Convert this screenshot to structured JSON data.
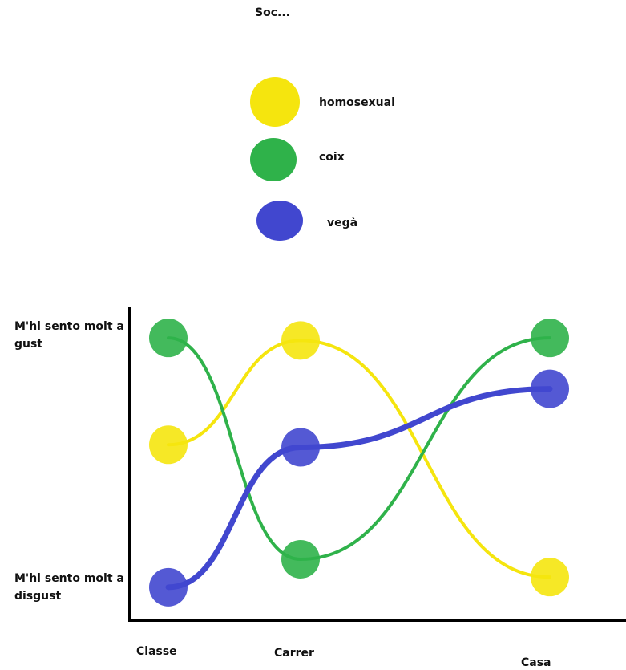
{
  "chart_data": {
    "type": "line",
    "title": "Soc...",
    "categories": [
      "Classe",
      "Carrer",
      "Casa"
    ],
    "y_ticks": [
      "M'hi sento molt a gust",
      "M'hi sento molt a disgust"
    ],
    "y_levels": [
      "M'hi sento molt a disgust",
      "M'hi sento molt a gust"
    ],
    "ylim": [
      0,
      1
    ],
    "legend_position": "top-center",
    "series": [
      {
        "name": "homosexual",
        "color": "#f5e50e",
        "values": [
          0.57,
          0.98,
          0.05
        ]
      },
      {
        "name": "coix",
        "color": "#2fb24a",
        "values": [
          0.99,
          0.12,
          0.99
        ]
      },
      {
        "name": "vegà",
        "color": "#4147cf",
        "values": [
          0.01,
          0.56,
          0.79
        ]
      }
    ]
  }
}
